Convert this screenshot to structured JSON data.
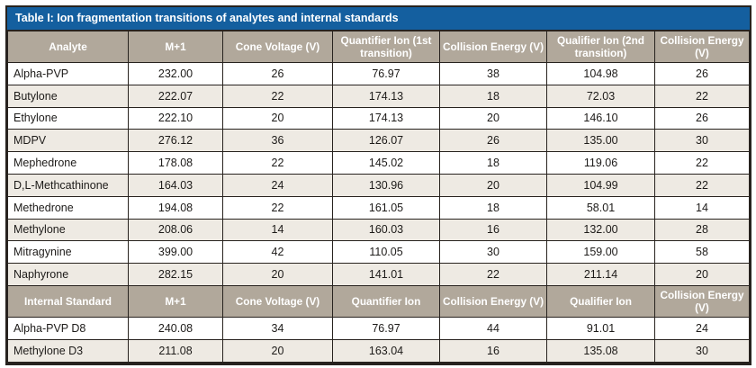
{
  "title": "Table I: Ion fragmentation transitions of analytes and internal standards",
  "colors": {
    "title_bar_bg": "#145f9f",
    "header_bg": "#b1a89b",
    "row_alt_bg": "#eeeae3",
    "border": "#27221e",
    "header_text": "#ffffff",
    "body_text": "#1d1b19"
  },
  "analytes_header": [
    "Analyte",
    "M+1",
    "Cone Voltage (V)",
    "Quantifier Ion (1st transition)",
    "Collision Energy (V)",
    "Qualifier Ion (2nd transition)",
    "Collision Energy (V)"
  ],
  "analyte_rows": [
    [
      "Alpha-PVP",
      "232.00",
      "26",
      "76.97",
      "38",
      "104.98",
      "26"
    ],
    [
      "Butylone",
      "222.07",
      "22",
      "174.13",
      "18",
      "72.03",
      "22"
    ],
    [
      "Ethylone",
      "222.10",
      "20",
      "174.13",
      "20",
      "146.10",
      "26"
    ],
    [
      "MDPV",
      "276.12",
      "36",
      "126.07",
      "26",
      "135.00",
      "30"
    ],
    [
      "Mephedrone",
      "178.08",
      "22",
      "145.02",
      "18",
      "119.06",
      "22"
    ],
    [
      "D,L-Methcathinone",
      "164.03",
      "24",
      "130.96",
      "20",
      "104.99",
      "22"
    ],
    [
      "Methedrone",
      "194.08",
      "22",
      "161.05",
      "18",
      "58.01",
      "14"
    ],
    [
      "Methylone",
      "208.06",
      "14",
      "160.03",
      "16",
      "132.00",
      "28"
    ],
    [
      "Mitragynine",
      "399.00",
      "42",
      "110.05",
      "30",
      "159.00",
      "58"
    ],
    [
      "Naphyrone",
      "282.15",
      "20",
      "141.01",
      "22",
      "211.14",
      "20"
    ]
  ],
  "internal_standards_header": [
    "Internal Standard",
    "M+1",
    "Cone Voltage (V)",
    "Quantifier Ion",
    "Collision Energy (V)",
    "Qualifier Ion",
    "Collision Energy (V)"
  ],
  "internal_standard_rows": [
    [
      "Alpha-PVP D8",
      "240.08",
      "34",
      "76.97",
      "44",
      "91.01",
      "24"
    ],
    [
      "Methylone D3",
      "211.08",
      "20",
      "163.04",
      "16",
      "135.08",
      "30"
    ]
  ]
}
